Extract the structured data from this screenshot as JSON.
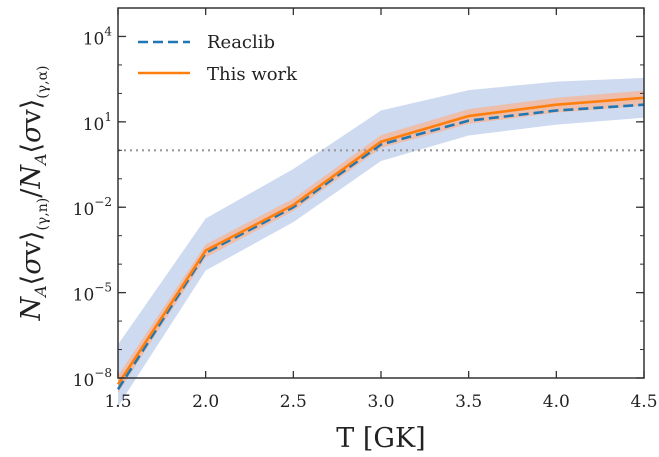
{
  "chart_data": {
    "type": "line",
    "xlabel": "T [GK]",
    "ylabel": "N_A⟨σv⟩_(γ,n) / N_A⟨σv⟩_(γ,α)",
    "xlim": [
      1.5,
      4.5
    ],
    "ylim": [
      1e-08,
      100000.0
    ],
    "yscale": "log",
    "x_ticks": [
      "1.5",
      "2.0",
      "2.5",
      "3.0",
      "3.5",
      "4.0",
      "4.5"
    ],
    "y_ticks": [
      {
        "base": "10",
        "exp": "−8",
        "value": 1e-08
      },
      {
        "base": "10",
        "exp": "−5",
        "value": 1e-05
      },
      {
        "base": "10",
        "exp": "−2",
        "value": 0.01
      },
      {
        "base": "10",
        "exp": "1",
        "value": 10
      },
      {
        "base": "10",
        "exp": "4",
        "value": 10000.0
      }
    ],
    "reference_line": {
      "y": 1.0,
      "style": "dotted",
      "color": "#999999"
    },
    "legend_position": "top-left",
    "series": [
      {
        "name": "Reaclib",
        "style": "dashed",
        "color": "#1f77b4",
        "x": [
          1.5,
          2.0,
          2.5,
          3.0,
          3.5,
          4.0,
          4.5
        ],
        "y": [
          4e-09,
          0.00025,
          0.01,
          1.6,
          11,
          25,
          40
        ]
      },
      {
        "name": "This work",
        "style": "solid",
        "color": "#ff7f0e",
        "x": [
          1.5,
          2.0,
          2.5,
          3.0,
          3.5,
          4.0,
          4.5
        ],
        "y": [
          6e-09,
          0.0003,
          0.012,
          2.0,
          16,
          40,
          70
        ],
        "band_inner": {
          "color": "#f2b8a0",
          "lower": [
            3e-09,
            0.00017,
            0.0074,
            1.2,
            8.5,
            21,
            37
          ],
          "upper": [
            1.2e-08,
            0.00049,
            0.02,
            3.4,
            28,
            70,
            125
          ]
        },
        "band_outer": {
          "color": "#c8d6ee",
          "lower": [
            1e-09,
            6e-05,
            0.003,
            0.42,
            3.3,
            8,
            14
          ],
          "upper": [
            1.5e-07,
            0.004,
            0.22,
            25,
            130,
            260,
            350
          ]
        }
      }
    ]
  }
}
